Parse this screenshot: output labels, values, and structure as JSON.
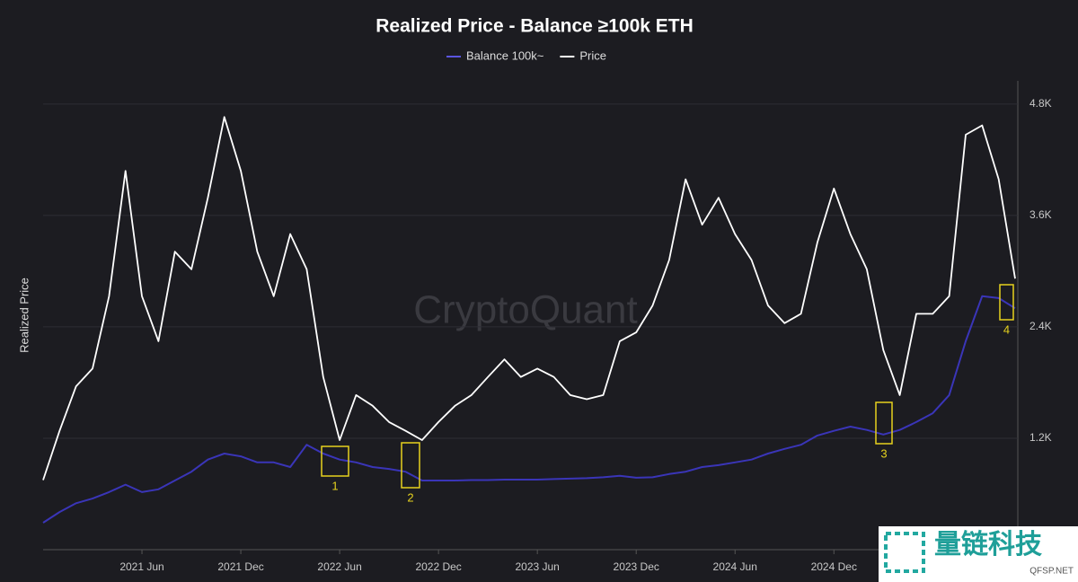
{
  "chart_data": {
    "type": "line",
    "title": "Realized Price - Balance ≥100k ETH",
    "y_axis_label": "Realized Price",
    "watermark": "CryptoQuant",
    "logo": {
      "name": "量链科技",
      "site": "QFSP.NET"
    },
    "annotations": [
      "1",
      "2",
      "3",
      "4"
    ],
    "categories": [
      null,
      null,
      null,
      null,
      null,
      null,
      "2021 Jun",
      null,
      null,
      null,
      null,
      null,
      "2021 Dec",
      null,
      null,
      null,
      null,
      null,
      "2022 Jun",
      null,
      null,
      null,
      null,
      null,
      "2022 Dec",
      null,
      null,
      null,
      null,
      null,
      "2023 Jun",
      null,
      null,
      null,
      null,
      null,
      "2023 Dec",
      null,
      null,
      null,
      null,
      null,
      "2024 Jun",
      null,
      null,
      null,
      null,
      null,
      "2024 Dec",
      null,
      null,
      null,
      null,
      null,
      null,
      null,
      null,
      null,
      null,
      null
    ],
    "series": [
      {
        "name": "Balance 100k~",
        "color": "#3a35b8",
        "values": [
          290,
          405,
          500,
          550,
          620,
          700,
          620,
          650,
          745,
          840,
          970,
          1035,
          1005,
          940,
          940,
          890,
          1130,
          1035,
          970,
          940,
          890,
          870,
          840,
          745,
          745,
          745,
          750,
          750,
          755,
          755,
          755,
          760,
          765,
          770,
          780,
          795,
          775,
          780,
          815,
          840,
          890,
          910,
          940,
          970,
          1035,
          1085,
          1130,
          1230,
          1280,
          1325,
          1290,
          1240,
          1290,
          1375,
          1470,
          1665,
          2245,
          2730,
          2710,
          2600
        ]
      },
      {
        "name": "Price",
        "color": "#ffffff",
        "values": [
          750,
          1280,
          1760,
          1950,
          2730,
          4080,
          2730,
          2245,
          3210,
          3020,
          3790,
          4660,
          4080,
          3210,
          2730,
          3400,
          3020,
          1860,
          1180,
          1665,
          1550,
          1375,
          1280,
          1180,
          1375,
          1550,
          1665,
          1860,
          2050,
          1860,
          1950,
          1860,
          1665,
          1620,
          1665,
          2245,
          2340,
          2630,
          3120,
          3990,
          3500,
          3790,
          3400,
          3120,
          2630,
          2440,
          2540,
          3310,
          3890,
          3400,
          3020,
          2150,
          1665,
          2540,
          2540,
          2730,
          4470,
          4570,
          3990,
          2920
        ]
      }
    ],
    "ylim": [
      0,
      5050
    ],
    "yticks": [
      {
        "value": 1200,
        "label": "1.2K"
      },
      {
        "value": 2400,
        "label": "2.4K"
      },
      {
        "value": 3600,
        "label": "3.6K"
      },
      {
        "value": 4800,
        "label": "4.8K"
      }
    ],
    "grid": true
  }
}
